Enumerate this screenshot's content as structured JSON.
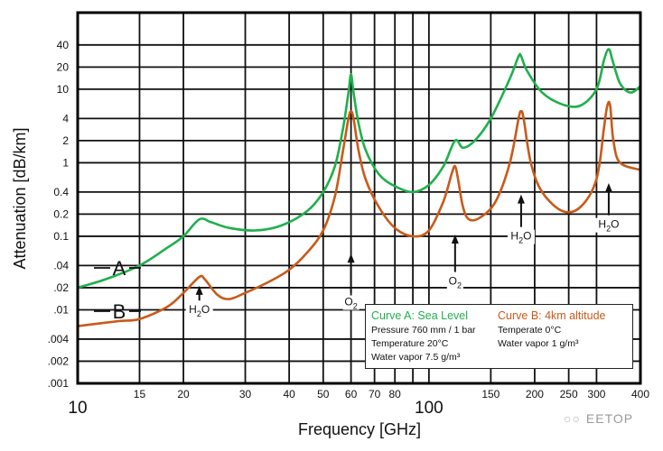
{
  "chart_data": {
    "type": "line",
    "title": "",
    "xlabel": "Frequency [GHz]",
    "ylabel": "Attenuation [dB/km]",
    "xscale": "log",
    "yscale": "log",
    "xlim": [
      10,
      400
    ],
    "ylim": [
      0.001,
      110
    ],
    "grid": true,
    "x_ticks": [
      {
        "value": 10,
        "label": "10",
        "major": true
      },
      {
        "value": 15,
        "label": "15"
      },
      {
        "value": 20,
        "label": "20"
      },
      {
        "value": 30,
        "label": "30"
      },
      {
        "value": 40,
        "label": "40"
      },
      {
        "value": 50,
        "label": "50"
      },
      {
        "value": 60,
        "label": "60"
      },
      {
        "value": 70,
        "label": "70"
      },
      {
        "value": 80,
        "label": "80"
      },
      {
        "value": 90,
        "label": ""
      },
      {
        "value": 100,
        "label": "100",
        "major": true
      },
      {
        "value": 150,
        "label": "150"
      },
      {
        "value": 200,
        "label": "200"
      },
      {
        "value": 250,
        "label": "250"
      },
      {
        "value": 300,
        "label": "300"
      },
      {
        "value": 400,
        "label": "400"
      }
    ],
    "y_ticks": [
      {
        "value": 40,
        "label": "40"
      },
      {
        "value": 20,
        "label": "20"
      },
      {
        "value": 10,
        "label": "10"
      },
      {
        "value": 4,
        "label": "4"
      },
      {
        "value": 2,
        "label": "2"
      },
      {
        "value": 1,
        "label": "1"
      },
      {
        "value": 0.4,
        "label": "0.4"
      },
      {
        "value": 0.2,
        "label": "0.2"
      },
      {
        "value": 0.1,
        "label": "0.1"
      },
      {
        "value": 0.04,
        "label": ".04"
      },
      {
        "value": 0.02,
        "label": ".02"
      },
      {
        "value": 0.01,
        "label": ".01"
      },
      {
        "value": 0.004,
        "label": ".004"
      },
      {
        "value": 0.002,
        "label": ".002"
      },
      {
        "value": 0.001,
        "label": ".001"
      }
    ],
    "series": [
      {
        "name": "Curve A: Sea Level",
        "short_label": "A",
        "color": "#1fb04c",
        "x": [
          10,
          12,
          15,
          18,
          20,
          22.2,
          24,
          27,
          32,
          38,
          45,
          50,
          54,
          57,
          59,
          60,
          61,
          63,
          66,
          72,
          80,
          90,
          100,
          110,
          118.7,
          125,
          135,
          150,
          170,
          180,
          183,
          190,
          210,
          240,
          270,
          300,
          315,
          325,
          333,
          350,
          375,
          400
        ],
        "y": [
          0.02,
          0.026,
          0.04,
          0.07,
          0.1,
          0.17,
          0.155,
          0.13,
          0.12,
          0.14,
          0.22,
          0.4,
          0.9,
          3,
          9,
          16,
          9,
          3.5,
          1.5,
          0.7,
          0.48,
          0.4,
          0.5,
          0.9,
          2,
          1.6,
          2,
          4,
          14,
          28,
          28,
          18,
          9,
          6.2,
          6,
          10,
          25,
          35,
          25,
          12,
          9,
          11
        ]
      },
      {
        "name": "Curve B: 4km altitude",
        "short_label": "B",
        "color": "#c85a1a",
        "x": [
          10,
          13,
          15,
          18,
          20,
          22.2,
          23,
          25,
          27,
          30,
          35,
          40,
          45,
          50,
          54,
          57,
          59,
          60,
          61,
          63,
          66,
          72,
          80,
          90,
          100,
          110,
          116,
          118.7,
          121,
          125,
          130,
          140,
          155,
          170,
          180,
          183,
          186,
          195,
          210,
          240,
          270,
          300,
          315,
          322,
          328,
          335,
          350,
          400
        ],
        "y": [
          0.006,
          0.007,
          0.0075,
          0.011,
          0.017,
          0.028,
          0.026,
          0.016,
          0.014,
          0.017,
          0.024,
          0.035,
          0.06,
          0.12,
          0.35,
          1.5,
          4,
          5,
          4,
          1.5,
          0.6,
          0.25,
          0.13,
          0.1,
          0.12,
          0.3,
          0.7,
          0.9,
          0.6,
          0.25,
          0.17,
          0.18,
          0.3,
          1,
          4,
          5,
          4,
          1,
          0.4,
          0.22,
          0.25,
          0.6,
          3,
          6,
          6,
          2,
          1,
          0.8
        ]
      }
    ],
    "annotations": [
      {
        "label": "H2O",
        "sub": "2",
        "base": "H",
        "tail": "O",
        "x": 22.2,
        "y_arrow_tip": 0.02,
        "y_text": 0.009
      },
      {
        "label": "O2",
        "sub": "2",
        "base": "O",
        "tail": "",
        "x": 60,
        "y_arrow_tip": 0.055,
        "y_text": 0.0115
      },
      {
        "label": "O2",
        "sub": "2",
        "base": "O",
        "tail": "",
        "x": 118.7,
        "y_arrow_tip": 0.1,
        "y_text": 0.022
      },
      {
        "label": "H2O",
        "sub": "2",
        "base": "H",
        "tail": "O",
        "x": 183,
        "y_arrow_tip": 0.35,
        "y_text": 0.09
      },
      {
        "label": "H2O",
        "sub": "2",
        "base": "H",
        "tail": "O",
        "x": 325,
        "y_arrow_tip": 0.5,
        "y_text": 0.13
      }
    ],
    "legend": {
      "position": "bottom-right",
      "curve_a": {
        "title": "Curve A: Sea Level",
        "lines": [
          "Pressure 760 mm / 1 bar",
          "Temperature 20°C",
          "Water vapor 7.5 g/m³"
        ]
      },
      "curve_b": {
        "title": "Curve B: 4km altitude",
        "lines": [
          "Temperate 0°C",
          "Water vapor 1 g/m³"
        ]
      }
    }
  },
  "watermark": {
    "text": "EETOP",
    "icon": "wechat-icon"
  }
}
